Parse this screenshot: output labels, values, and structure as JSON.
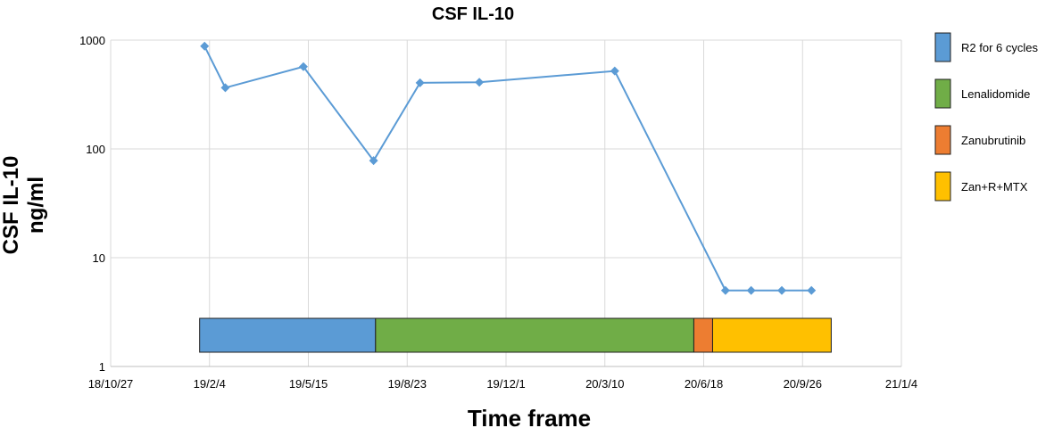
{
  "chart_data": {
    "type": "line",
    "title": "CSF IL-10",
    "xlabel": "Time frame",
    "ylabel_lines": [
      "CSF IL-10",
      "ng/ml"
    ],
    "y_scale": "log",
    "ylim": [
      1,
      1000
    ],
    "y_ticks": [
      1,
      10,
      100,
      1000
    ],
    "y_tick_labels": [
      "1",
      "10",
      "100",
      "1000"
    ],
    "xlim": [
      "2018-10-27",
      "2021-01-04"
    ],
    "x_ticks": [
      "2018-10-27",
      "2019-02-04",
      "2019-05-15",
      "2019-08-23",
      "2019-12-01",
      "2020-03-10",
      "2020-06-18",
      "2020-09-26",
      "2021-01-04"
    ],
    "x_tick_labels": [
      "18/10/27",
      "19/2/4",
      "19/5/15",
      "19/8/23",
      "19/12/1",
      "20/3/10",
      "20/6/18",
      "20/9/26",
      "21/1/4"
    ],
    "grid": true,
    "legend_position": "right",
    "line_color": "#5b9bd5",
    "series": [
      {
        "x": [
          "2019-01-30",
          "2019-02-20",
          "2019-05-10",
          "2019-07-20",
          "2019-09-05",
          "2019-11-04",
          "2020-03-20",
          "2020-07-10",
          "2020-08-05",
          "2020-09-05",
          "2020-10-05"
        ],
        "y": [
          880,
          365,
          570,
          78,
          405,
          410,
          520,
          5,
          5,
          5,
          5
        ]
      }
    ],
    "treatments": [
      {
        "label": "R2 for 6 cycles",
        "start": "2019-01-25",
        "end": "2019-07-22",
        "color": "#5b9bd5"
      },
      {
        "label": "Lenalidomide",
        "start": "2019-07-22",
        "end": "2020-06-08",
        "color": "#70ad47"
      },
      {
        "label": "Zanubrutinib",
        "start": "2020-06-08",
        "end": "2020-06-27",
        "color": "#ed7d31"
      },
      {
        "label": "Zan+R+MTX",
        "start": "2020-06-27",
        "end": "2020-10-25",
        "color": "#ffc000"
      }
    ]
  }
}
